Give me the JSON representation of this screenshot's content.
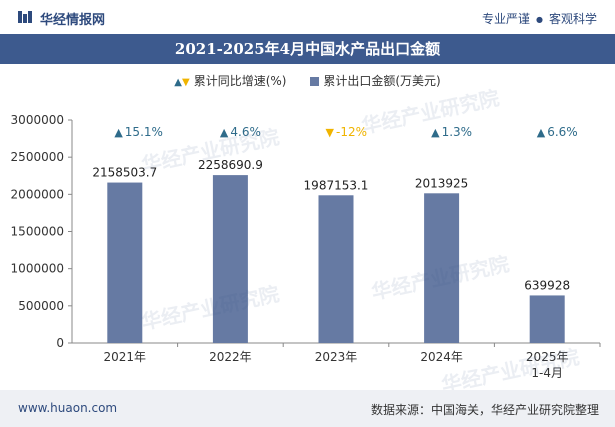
{
  "header": {
    "brand": "华经情报网",
    "slogan_left": "专业严谨",
    "slogan_dot": "●",
    "slogan_right": "客观科学"
  },
  "footer": {
    "site": "www.huaon.com",
    "source": "数据来源：中国海关，华经产业研究院整理"
  },
  "watermark": "华经产业研究院",
  "colors": {
    "bar": "#667aa3",
    "title_bg": "#3d5a8e",
    "up": "#2e6b8a",
    "down": "#f0b400"
  },
  "chart_data": {
    "type": "bar",
    "title": "2021-2025年4月中国水产品出口金额",
    "categories": [
      "2021年",
      "2022年",
      "2023年",
      "2024年",
      "2025年\n1-4月"
    ],
    "series": [
      {
        "name": "累计出口金额(万美元)",
        "values": [
          2158503.7,
          2258690.9,
          1987153.1,
          2013925,
          639928
        ],
        "labels": [
          "2158503.7",
          "2258690.9",
          "1987153.1",
          "2013925",
          "639928"
        ]
      },
      {
        "name": "累计同比增速(%)",
        "values": [
          15.1,
          4.6,
          -12,
          1.3,
          6.6
        ],
        "labels": [
          "15.1%",
          "4.6%",
          "-12%",
          "1.3%",
          "6.6%"
        ]
      }
    ],
    "y_ticks": [
      "0",
      "500000",
      "1000000",
      "1500000",
      "2000000",
      "2500000",
      "3000000"
    ],
    "ylim": [
      0,
      3000000
    ],
    "legend_position": "top-center",
    "growth_markers": {
      "up": "▲",
      "down": "▼"
    }
  }
}
